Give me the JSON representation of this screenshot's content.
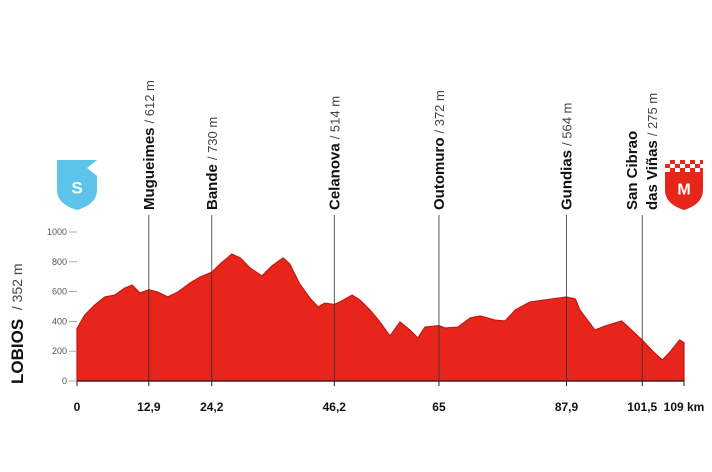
{
  "chart_data": {
    "type": "area",
    "color": "#e8251b",
    "x": [
      0,
      1.4,
      3.2,
      5.0,
      6.8,
      8.6,
      9.9,
      11.3,
      12.9,
      14.5,
      16.3,
      18.1,
      20.3,
      22.1,
      24.2,
      25.7,
      27.8,
      29.3,
      31.1,
      33.2,
      35.0,
      37.0,
      38.2,
      40.0,
      41.8,
      43.3,
      44.5,
      46.2,
      47.2,
      49.4,
      50.8,
      52.6,
      54.4,
      56.2,
      58.0,
      59.8,
      61.2,
      62.5,
      65,
      66.1,
      68.4,
      70.6,
      72.4,
      75.1,
      76.9,
      78.7,
      81.3,
      84.0,
      87.9,
      89.5,
      90.3,
      93.0,
      94.8,
      97.8,
      101.5,
      103.5,
      105.1,
      106.5,
      108.2,
      109
    ],
    "values": [
      352,
      443,
      510,
      564,
      577,
      624,
      644,
      591,
      612,
      597,
      564,
      597,
      658,
      698,
      730,
      785,
      852,
      826,
      758,
      705,
      772,
      826,
      785,
      651,
      557,
      497,
      523,
      514,
      530,
      577,
      544,
      477,
      396,
      302,
      396,
      342,
      289,
      362,
      372,
      356,
      362,
      423,
      436,
      409,
      403,
      477,
      530,
      544,
      564,
      550,
      477,
      342,
      369,
      403,
      275,
      195,
      141,
      195,
      275,
      258
    ],
    "xlim": [
      0,
      109
    ],
    "ylim": [
      0,
      1000
    ],
    "yticks": [
      0,
      200,
      400,
      600,
      800,
      1000
    ],
    "xticks": [
      0,
      {
        "value": 12.9,
        "label": "12,9"
      },
      {
        "value": 24.2,
        "label": "24,2"
      },
      {
        "value": 46.2,
        "label": "46,2"
      },
      65,
      {
        "value": 87.9,
        "label": "87,9"
      },
      {
        "value": 101.5,
        "label": "101,5"
      },
      {
        "value": 109,
        "label": "109 km"
      }
    ],
    "start": {
      "name": "LOBIOS",
      "elevation": "/ 352 m",
      "badge": "S"
    },
    "finish": {
      "badge": "M"
    },
    "waypoints": [
      {
        "name": [
          "Mugueimes"
        ],
        "elevation": "/ 612 m"
      },
      {
        "name": [
          "Bande"
        ],
        "elevation": "/ 730 m"
      },
      {
        "name": [
          "Celanova"
        ],
        "elevation": "/ 514 m"
      },
      {
        "name": [
          "Outomuro"
        ],
        "elevation": "/ 372 m"
      },
      {
        "name": [
          "Gundias"
        ],
        "elevation": "/ 564 m"
      },
      {
        "name": [
          "San Cibrao",
          "das Viñas"
        ],
        "elevation": "/ 275 m"
      }
    ]
  }
}
